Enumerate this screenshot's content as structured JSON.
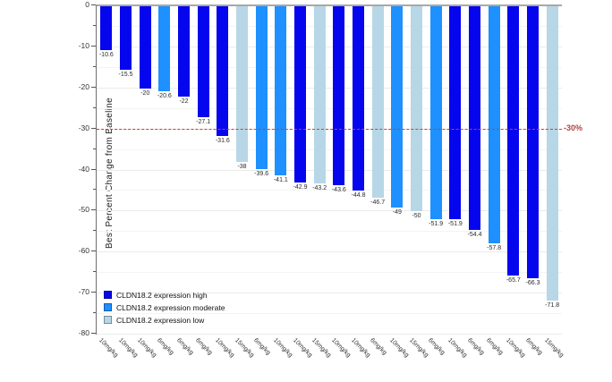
{
  "chart_data": {
    "type": "bar",
    "title": "",
    "subtitle": "",
    "xlabel": "",
    "ylabel": "Best Percent Change from Baseline",
    "ylim": [
      -80,
      0
    ],
    "yticks": [
      0,
      -10,
      -20,
      -30,
      -40,
      -50,
      -60,
      -70,
      -80
    ],
    "minor_tick_step": 5,
    "grid": "horizontal, faint, every 5 units",
    "legend_position": "inside bottom-left",
    "threshold_line": {
      "value": -30,
      "label": "-30%",
      "line_color": "#d43a3a",
      "label_color": "#b04343",
      "style": "dashed"
    },
    "groups": {
      "high": {
        "label": "CLDN18.2 expression high",
        "color": "#0606ee"
      },
      "moderate": {
        "label": "CLDN18.2 expression moderate",
        "color": "#1e90ff"
      },
      "low": {
        "label": "CLDN18.2 expression low",
        "color": "#b7d7e6"
      }
    },
    "legend_order": [
      "high",
      "moderate",
      "low"
    ],
    "bars": [
      {
        "dose": "10mg/kg",
        "value": -10.6,
        "label": "-10.6",
        "group": "high"
      },
      {
        "dose": "10mg/kg",
        "value": -15.5,
        "label": "-15.5",
        "group": "high"
      },
      {
        "dose": "10mg/kg",
        "value": -20.0,
        "label": "-20",
        "group": "high"
      },
      {
        "dose": "6mg/kg",
        "value": -20.6,
        "label": "-20.6",
        "group": "moderate"
      },
      {
        "dose": "6mg/kg",
        "value": -22.0,
        "label": "-22",
        "group": "high"
      },
      {
        "dose": "6mg/kg",
        "value": -27.1,
        "label": "-27.1",
        "group": "high"
      },
      {
        "dose": "10mg/kg",
        "value": -31.6,
        "label": "-31.6",
        "group": "high"
      },
      {
        "dose": "15mg/kg",
        "value": -38.0,
        "label": "-38",
        "group": "low"
      },
      {
        "dose": "6mg/kg",
        "value": -39.6,
        "label": "-39.6",
        "group": "moderate"
      },
      {
        "dose": "10mg/kg",
        "value": -41.1,
        "label": "-41.1",
        "group": "moderate"
      },
      {
        "dose": "10mg/kg",
        "value": -42.9,
        "label": "-42.9",
        "group": "high"
      },
      {
        "dose": "15mg/kg",
        "value": -43.2,
        "label": "-43.2",
        "group": "low"
      },
      {
        "dose": "10mg/kg",
        "value": -43.6,
        "label": "-43.6",
        "group": "high"
      },
      {
        "dose": "10mg/kg",
        "value": -44.8,
        "label": "-44.8",
        "group": "high"
      },
      {
        "dose": "6mg/kg",
        "value": -46.7,
        "label": "-46.7",
        "group": "low"
      },
      {
        "dose": "10mg/kg",
        "value": -49.0,
        "label": "-49",
        "group": "moderate"
      },
      {
        "dose": "15mg/kg",
        "value": -50.0,
        "label": "-50",
        "group": "low"
      },
      {
        "dose": "6mg/kg",
        "value": -51.9,
        "label": "-51.9",
        "group": "moderate"
      },
      {
        "dose": "10mg/kg",
        "value": -51.9,
        "label": "-51.9",
        "group": "high"
      },
      {
        "dose": "6mg/kg",
        "value": -54.4,
        "label": "-54.4",
        "group": "high"
      },
      {
        "dose": "6mg/kg",
        "value": -57.8,
        "label": "-57.8",
        "group": "moderate"
      },
      {
        "dose": "10mg/kg",
        "value": -65.7,
        "label": "-65.7",
        "group": "high"
      },
      {
        "dose": "6mg/kg",
        "value": -66.3,
        "label": "-66.3",
        "group": "high"
      },
      {
        "dose": "15mg/kg",
        "value": -71.8,
        "label": "-71.8",
        "group": "low"
      }
    ]
  }
}
